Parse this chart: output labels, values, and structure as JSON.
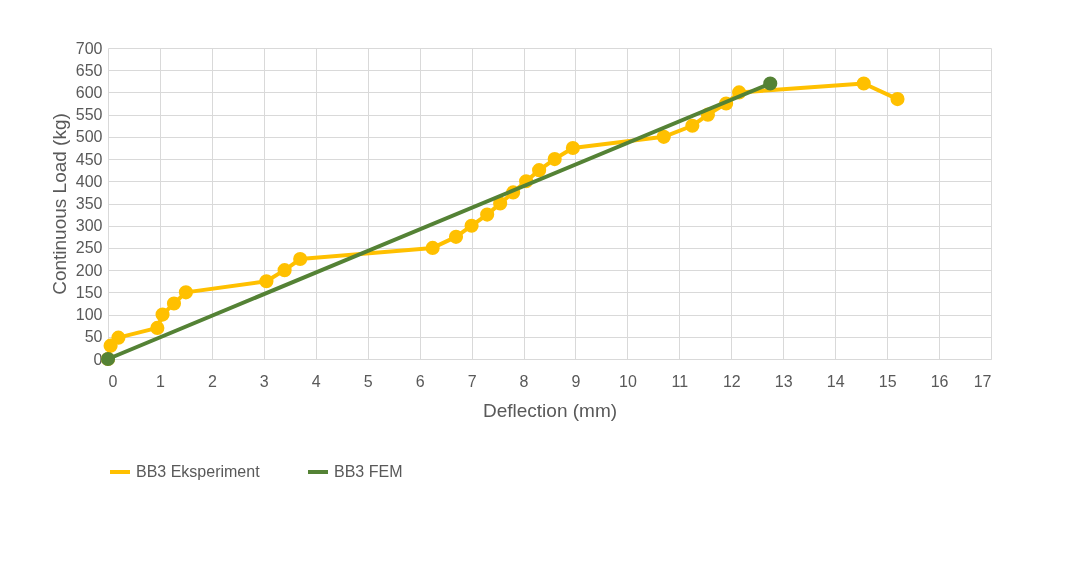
{
  "chart_data": {
    "type": "line",
    "xlabel": "Deflection (mm)",
    "ylabel": "Continuous Load (kg)",
    "xlim": [
      0,
      17
    ],
    "xticks": [
      0,
      1,
      2,
      3,
      4,
      5,
      6,
      7,
      8,
      9,
      10,
      11,
      12,
      13,
      14,
      15,
      16,
      17
    ],
    "ylim": [
      0,
      700
    ],
    "yticks": [
      0,
      50,
      100,
      150,
      200,
      250,
      300,
      350,
      400,
      450,
      500,
      550,
      600,
      650,
      700
    ],
    "grid": true,
    "legend": "bottom",
    "marker": "circle",
    "series": [
      {
        "name": "BB3 Eksperiment",
        "color": "#ffc000",
        "x": [
          0,
          0.05,
          0.2,
          0.95,
          1.05,
          1.27,
          1.5,
          3.05,
          3.4,
          3.7,
          6.25,
          6.7,
          7,
          7.3,
          7.55,
          7.8,
          8.05,
          8.3,
          8.6,
          8.95,
          10.7,
          11.25,
          11.55,
          11.9,
          12.15,
          14.55,
          15.2
        ],
        "values": [
          0,
          30,
          48,
          70,
          100,
          125,
          150,
          175,
          200,
          225,
          250,
          275,
          300,
          325,
          350,
          375,
          400,
          425,
          450,
          475,
          500,
          525,
          550,
          575,
          600,
          620,
          585
        ]
      },
      {
        "name": "BB3 FEM",
        "color": "#548235",
        "x": [
          0,
          12.75
        ],
        "values": [
          0,
          620
        ]
      }
    ]
  }
}
